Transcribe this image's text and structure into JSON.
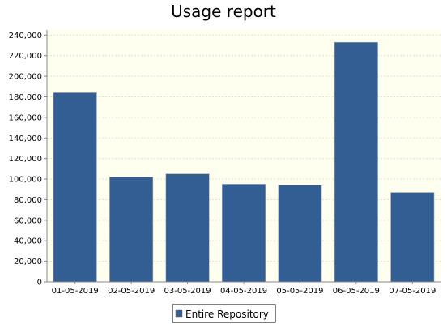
{
  "chart_data": {
    "type": "bar",
    "title": "Usage report",
    "xlabel": "",
    "ylabel": "",
    "categories": [
      "01-05-2019",
      "02-05-2019",
      "03-05-2019",
      "04-05-2019",
      "05-05-2019",
      "06-05-2019",
      "07-05-2019"
    ],
    "series": [
      {
        "name": "Entire Repository",
        "values": [
          184000,
          102000,
          105000,
          95000,
          94000,
          233000,
          87000
        ],
        "color": "#335e93"
      }
    ],
    "ylim": [
      0,
      245000
    ],
    "yticks": [
      0,
      20000,
      40000,
      60000,
      80000,
      100000,
      120000,
      140000,
      160000,
      180000,
      200000,
      220000,
      240000
    ],
    "grid": true,
    "legend_position": "bottom",
    "plot_background": "#fffff0"
  }
}
